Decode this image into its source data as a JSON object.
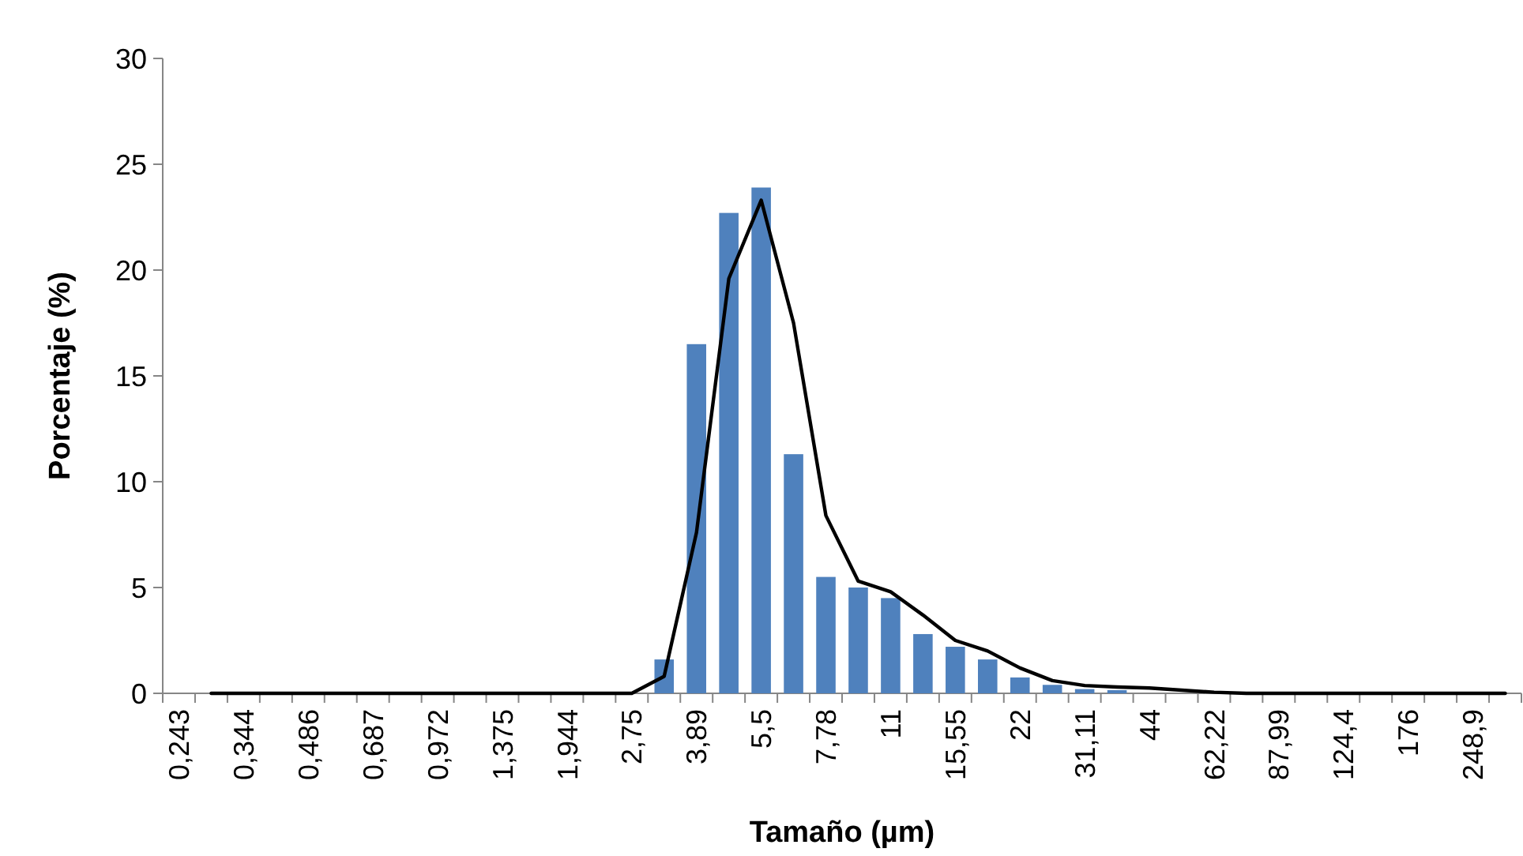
{
  "chart_data": {
    "type": "bar",
    "xlabel": "Tamaño (µm)",
    "ylabel": "Porcentaje (%)",
    "categories": [
      "0,243",
      null,
      "0,344",
      null,
      "0,486",
      null,
      "0,687",
      null,
      "0,972",
      null,
      "1,375",
      null,
      "1,944",
      null,
      "2,75",
      null,
      "3,89",
      null,
      "5,5",
      null,
      "7,78",
      null,
      "11",
      null,
      "15,55",
      null,
      "22",
      null,
      "31,11",
      null,
      "44",
      null,
      "62,22",
      null,
      "87,99",
      null,
      "124,4",
      null,
      "176",
      null,
      "248,9",
      null
    ],
    "series": [
      {
        "color": "#4f81bd",
        "values": [
          0,
          0,
          0,
          0,
          0,
          0,
          0,
          0,
          0,
          0,
          0,
          0,
          0,
          0,
          0,
          1.6,
          16.5,
          22.7,
          23.9,
          11.3,
          5.5,
          5.0,
          4.5,
          2.8,
          2.2,
          1.6,
          0.75,
          0.4,
          0.2,
          0.15,
          null,
          0,
          0,
          0,
          0,
          0,
          0,
          0,
          0,
          0,
          0,
          0
        ]
      },
      {
        "type": "line",
        "color": "#000000",
        "values": [
          null,
          0,
          0,
          0,
          0,
          0,
          0,
          0,
          0,
          0,
          0,
          0,
          0,
          0,
          0,
          0.8,
          7.6,
          19.6,
          23.3,
          17.5,
          8.4,
          5.3,
          4.8,
          3.7,
          2.5,
          2.0,
          1.2,
          0.6,
          0.37,
          0.3,
          0.25,
          0.15,
          0.05,
          0,
          0,
          0,
          0,
          0,
          0,
          0,
          0,
          0
        ]
      }
    ],
    "ylim": [
      0,
      30
    ],
    "yticks": [
      0,
      5,
      10,
      15,
      20,
      25,
      30
    ],
    "grid": false
  }
}
